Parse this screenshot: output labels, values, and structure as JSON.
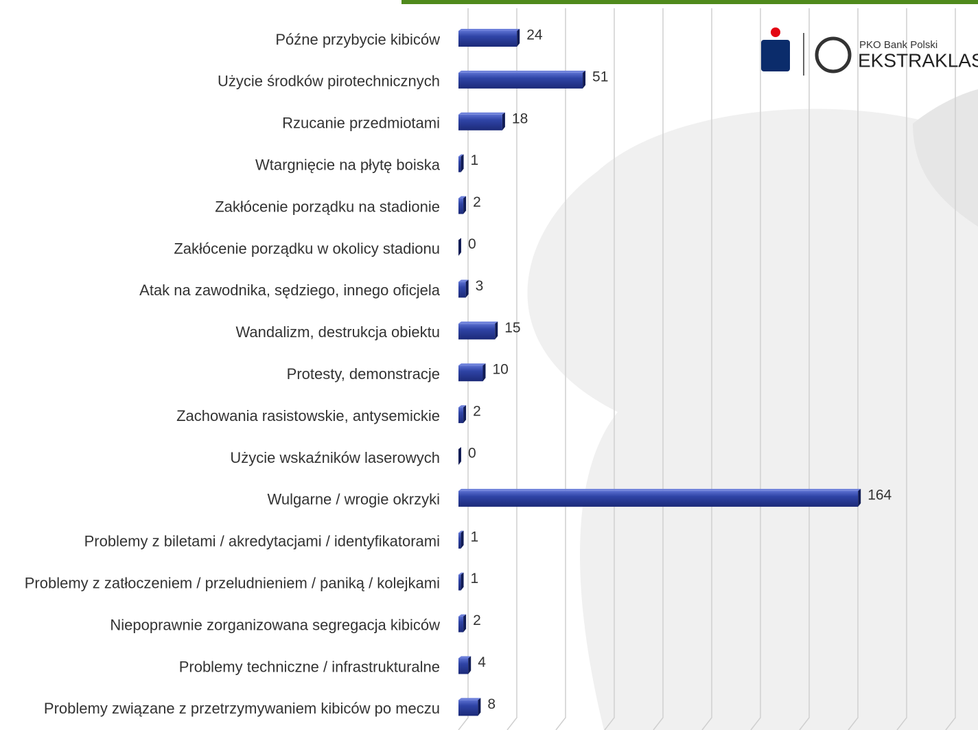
{
  "chart_data": {
    "type": "hbar",
    "categories": [
      "Późne przybycie kibiców",
      "Użycie środków pirotechnicznych",
      "Rzucanie przedmiotami",
      "Wtargnięcie na płytę boiska",
      "Zakłócenie porządku na stadionie",
      "Zakłócenie porządku  w okolicy stadionu",
      "Atak na zawodnika, sędziego, innego oficjela",
      "Wandalizm, destrukcja obiektu",
      "Protesty, demonstracje",
      "Zachowania rasistowskie, antysemickie",
      "Użycie wskaźników laserowych",
      "Wulgarne / wrogie okrzyki",
      "Problemy z biletami / akredytacjami / identyfikatorami",
      "Problemy z zatłoczeniem / przeludnieniem / paniką / kolejkami",
      "Niepoprawnie zorganizowana segregacja kibiców",
      "Problemy techniczne / infrastrukturalne",
      "Problemy związane z przetrzymywaniem kibiców po meczu"
    ],
    "values": [
      24,
      51,
      18,
      1,
      2,
      0,
      3,
      15,
      10,
      2,
      0,
      164,
      1,
      1,
      2,
      4,
      8
    ],
    "color": "#2b3d96",
    "xlim": [
      0,
      200
    ],
    "xticks": [
      0,
      20,
      40,
      60,
      80,
      100,
      120,
      140,
      160,
      180,
      200
    ],
    "grid": true,
    "logo": {
      "brand": "PKO Bank Polski",
      "league": "EKSTRAKLASA"
    }
  }
}
